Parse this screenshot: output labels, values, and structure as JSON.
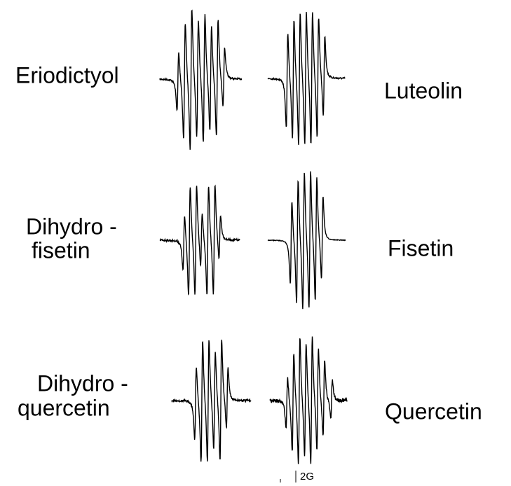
{
  "panels": [
    {
      "label": [
        "Eriodictyol"
      ]
    },
    {
      "label": [
        "Luteolin"
      ]
    },
    {
      "label": [
        "Dihydro -",
        "fisetin"
      ]
    },
    {
      "label": [
        "Fisetin"
      ]
    },
    {
      "label": [
        "Dihydro -",
        "quercetin"
      ]
    },
    {
      "label": [
        "Quercetin"
      ]
    }
  ],
  "scale_bar": "2G"
}
